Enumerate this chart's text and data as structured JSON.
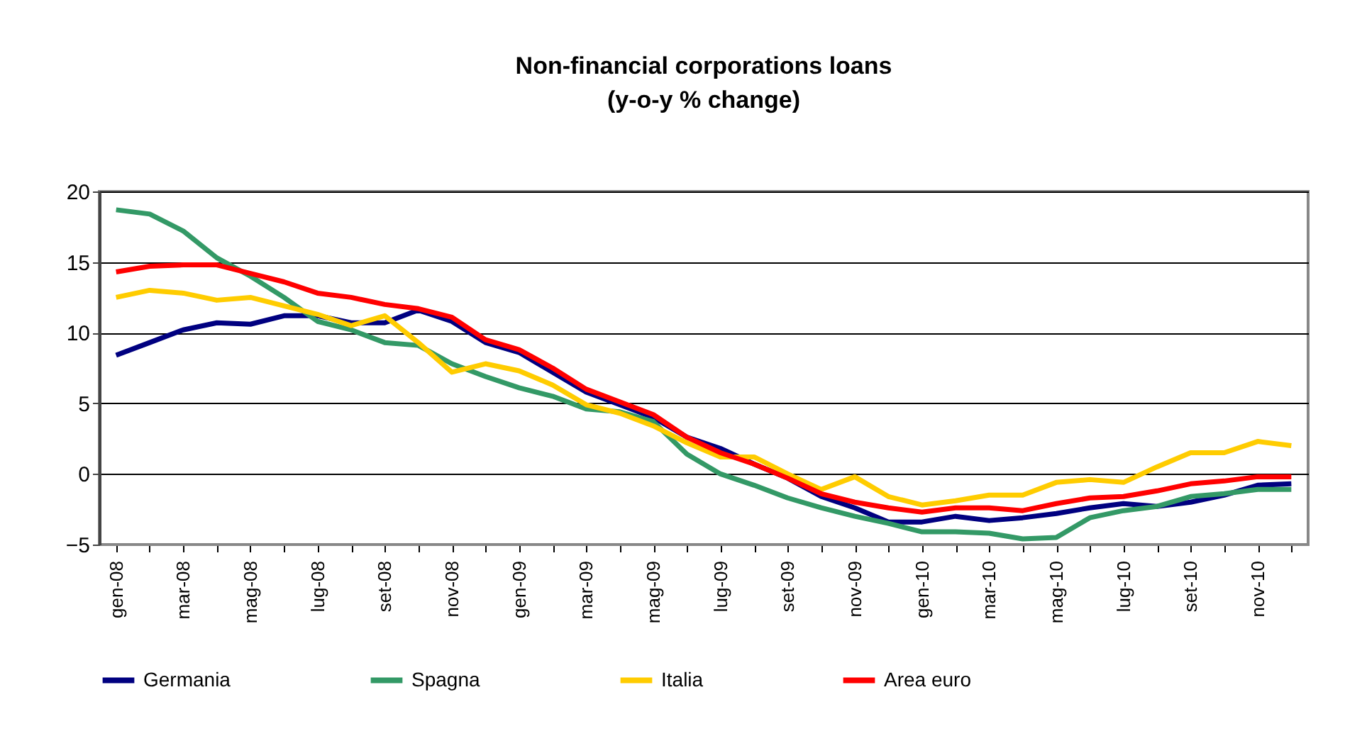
{
  "chart_data": {
    "type": "line",
    "title": "Non-financial corporations loans\n(y-o-y % change)",
    "categories": [
      "gen-08",
      null,
      "mar-08",
      null,
      "mag-08",
      null,
      "lug-08",
      null,
      "set-08",
      null,
      "nov-08",
      null,
      "gen-09",
      null,
      "mar-09",
      null,
      "mag-09",
      null,
      "lug-09",
      null,
      "set-09",
      null,
      "nov-09",
      null,
      "gen-10",
      null,
      "mar-10",
      null,
      "mag-10",
      null,
      "lug-10",
      null,
      "set-10",
      null,
      "nov-10",
      null
    ],
    "series": [
      {
        "name": "Germania",
        "color": "#000080",
        "values": [
          8.4,
          9.3,
          10.2,
          10.7,
          10.6,
          11.2,
          11.2,
          10.7,
          10.7,
          11.6,
          10.8,
          9.3,
          8.6,
          7.2,
          5.8,
          4.9,
          4.0,
          2.6,
          1.8,
          0.7,
          -0.3,
          -1.6,
          -2.4,
          -3.4,
          -3.4,
          -3.0,
          -3.3,
          -3.1,
          -2.8,
          -2.4,
          -2.1,
          -2.3,
          -2.0,
          -1.5,
          -0.8,
          -0.7
        ]
      },
      {
        "name": "Spagna",
        "color": "#339966",
        "values": [
          18.7,
          18.4,
          17.2,
          15.3,
          14.0,
          12.5,
          10.8,
          10.2,
          9.3,
          9.1,
          7.8,
          6.9,
          6.1,
          5.5,
          4.6,
          4.4,
          3.7,
          1.4,
          0.0,
          -0.8,
          -1.7,
          -2.4,
          -3.0,
          -3.5,
          -4.1,
          -4.1,
          -4.2,
          -4.6,
          -4.5,
          -3.1,
          -2.6,
          -2.3,
          -1.6,
          -1.4,
          -1.1,
          -1.1
        ]
      },
      {
        "name": "Italia",
        "color": "#ffcc00",
        "values": [
          12.5,
          13.0,
          12.8,
          12.3,
          12.5,
          11.9,
          11.3,
          10.5,
          11.2,
          9.3,
          7.2,
          7.8,
          7.3,
          6.3,
          4.9,
          4.3,
          3.4,
          2.2,
          1.2,
          1.2,
          0.0,
          -1.1,
          -0.2,
          -1.6,
          -2.2,
          -1.9,
          -1.5,
          -1.5,
          -0.6,
          -0.4,
          -0.6,
          0.5,
          1.5,
          1.5,
          2.3,
          2.0
        ]
      },
      {
        "name": "Area euro",
        "color": "#ff0000",
        "values": [
          14.3,
          14.7,
          14.8,
          14.8,
          14.2,
          13.6,
          12.8,
          12.5,
          12.0,
          11.7,
          11.1,
          9.5,
          8.8,
          7.5,
          6.0,
          5.1,
          4.2,
          2.6,
          1.5,
          0.7,
          -0.3,
          -1.4,
          -2.0,
          -2.4,
          -2.7,
          -2.4,
          -2.4,
          -2.6,
          -2.1,
          -1.7,
          -1.6,
          -1.2,
          -0.7,
          -0.5,
          -0.2,
          -0.2
        ]
      }
    ],
    "ylim": [
      -5,
      20
    ],
    "yticks": [
      -5,
      0,
      5,
      10,
      15,
      20
    ],
    "grid": "y",
    "legend": "bottom",
    "marker": "none",
    "line_style": "solid"
  }
}
